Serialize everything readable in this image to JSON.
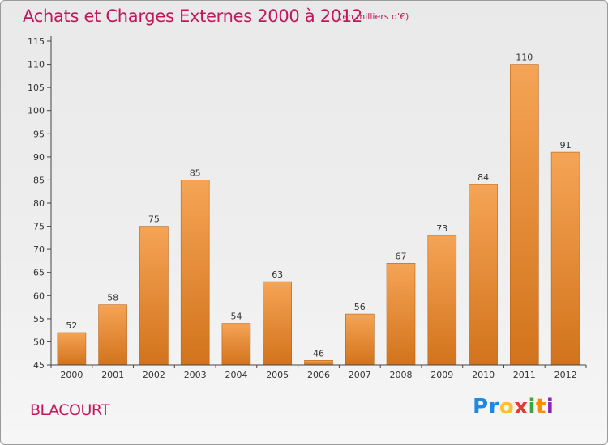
{
  "header": {
    "title": "Achats et Charges Externes 2000 à 2012",
    "subtitle": "(en milliers d'€)"
  },
  "footer": {
    "commune": "BLACOURT",
    "logo_letters": [
      {
        "char": "P",
        "color": "#1e88e5"
      },
      {
        "char": "r",
        "color": "#1e88e5"
      },
      {
        "char": "o",
        "color": "#fbc02d"
      },
      {
        "char": "x",
        "color": "#e53935"
      },
      {
        "char": "i",
        "color": "#43a047"
      },
      {
        "char": "t",
        "color": "#fb8c00"
      },
      {
        "char": "i",
        "color": "#8e24aa"
      }
    ]
  },
  "chart_data": {
    "type": "bar",
    "title": "Achats et Charges Externes 2000 à 2012",
    "subtitle": "(en milliers d'€)",
    "categories": [
      "2000",
      "2001",
      "2002",
      "2003",
      "2004",
      "2005",
      "2006",
      "2007",
      "2008",
      "2009",
      "2010",
      "2011",
      "2012"
    ],
    "values": [
      52,
      58,
      75,
      85,
      54,
      63,
      46,
      56,
      67,
      73,
      84,
      110,
      91
    ],
    "data_labels": [
      "52",
      "58",
      "75",
      "85",
      "54",
      "63",
      "46",
      "56",
      "67",
      "73",
      "84",
      "110",
      "91"
    ],
    "ylim": [
      45,
      115
    ],
    "yticks": [
      45,
      50,
      55,
      60,
      65,
      70,
      75,
      80,
      85,
      90,
      95,
      100,
      105,
      110,
      115
    ],
    "xlabel": "",
    "ylabel": "",
    "grid": false,
    "colors": {
      "bar_top": "#f5a455",
      "bar_bottom": "#d2731c",
      "bar_edge": "#b8651a",
      "axis": "#444444",
      "title": "#c2185b"
    }
  }
}
